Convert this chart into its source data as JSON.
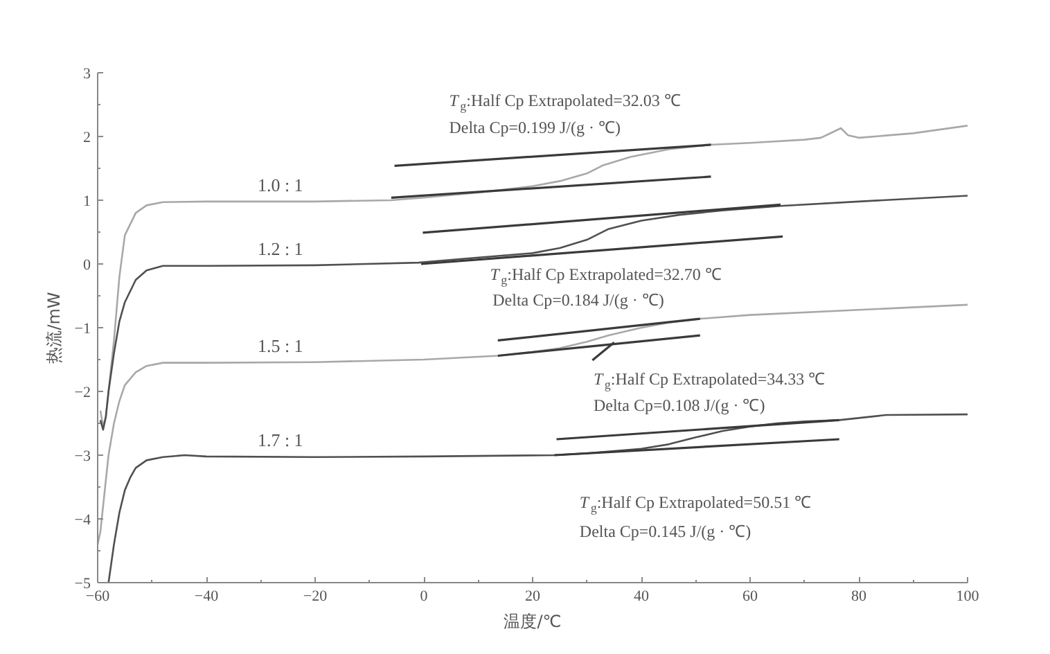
{
  "chart_data": {
    "type": "line",
    "xlabel": "温度/℃",
    "ylabel": "热流/mW",
    "xlim": [
      -60,
      100
    ],
    "ylim": [
      -5,
      3
    ],
    "xticks": [
      -60,
      -40,
      -20,
      0,
      20,
      40,
      60,
      80,
      100
    ],
    "yticks": [
      -5,
      -4,
      -3,
      -2,
      -1,
      0,
      1,
      2,
      3
    ],
    "grid": false,
    "marker": "none",
    "line_style": "solid",
    "series": [
      {
        "name": "1.0 : 1",
        "color": "#a8a8a8",
        "x": [
          -59.5,
          -59,
          -58.5,
          -58,
          -57,
          -56,
          -55,
          -53,
          -51,
          -48,
          -40,
          -20,
          -6,
          0,
          10,
          20,
          25,
          30,
          33,
          38,
          45,
          52.6,
          60,
          70,
          73,
          75,
          76.7,
          78,
          80,
          90,
          100
        ],
        "values": [
          -2.3,
          -2.55,
          -2.4,
          -2.0,
          -1.2,
          -0.2,
          0.45,
          0.8,
          0.92,
          0.97,
          0.98,
          0.98,
          1.0,
          1.04,
          1.12,
          1.22,
          1.3,
          1.42,
          1.55,
          1.68,
          1.8,
          1.87,
          1.9,
          1.95,
          1.98,
          2.06,
          2.13,
          2.02,
          1.98,
          2.05,
          2.17
        ]
      },
      {
        "name": "1.2 : 1",
        "color": "#505050",
        "x": [
          -59.5,
          -59,
          -58.5,
          -58,
          -57,
          -56,
          -55,
          -53,
          -51,
          -48,
          -40,
          -20,
          -1,
          10,
          20,
          25,
          30,
          34,
          40,
          47,
          55,
          65.6,
          80,
          100
        ],
        "values": [
          -2.45,
          -2.6,
          -2.4,
          -2.0,
          -1.4,
          -0.9,
          -0.6,
          -0.25,
          -0.1,
          -0.03,
          -0.03,
          -0.02,
          0.02,
          0.1,
          0.17,
          0.25,
          0.38,
          0.55,
          0.68,
          0.77,
          0.84,
          0.91,
          0.98,
          1.07
        ]
      },
      {
        "name": "1.5 : 1",
        "color": "#a8a8a8",
        "x": [
          -60,
          -59.5,
          -59,
          -58,
          -57,
          -56,
          -55,
          -53,
          -51,
          -48,
          -40,
          -20,
          0,
          13.6,
          20,
          25,
          30,
          34,
          40,
          45,
          50.8,
          60,
          80,
          100
        ],
        "values": [
          -4.4,
          -4.2,
          -3.8,
          -3.0,
          -2.5,
          -2.15,
          -1.9,
          -1.7,
          -1.6,
          -1.55,
          -1.55,
          -1.54,
          -1.5,
          -1.44,
          -1.38,
          -1.32,
          -1.22,
          -1.12,
          -1.0,
          -0.92,
          -0.86,
          -0.8,
          -0.72,
          -0.64
        ]
      },
      {
        "name": "1.7 : 1",
        "color": "#505050",
        "x": [
          -58,
          -57,
          -56,
          -55,
          -54,
          -53,
          -51,
          -48,
          -44,
          -40,
          -20,
          0,
          24,
          30,
          40,
          45,
          50,
          55,
          60,
          65,
          70,
          76.4,
          85,
          100
        ],
        "values": [
          -5.0,
          -4.4,
          -3.9,
          -3.55,
          -3.35,
          -3.2,
          -3.08,
          -3.03,
          -3.0,
          -3.02,
          -3.03,
          -3.02,
          -3.0,
          -2.97,
          -2.9,
          -2.83,
          -2.72,
          -2.62,
          -2.55,
          -2.5,
          -2.47,
          -2.45,
          -2.37,
          -2.36
        ]
      },
      {
        "color": "#3a3a3a",
        "x": [
          -5.4,
          52.8
        ],
        "values": [
          1.54,
          1.87
        ]
      },
      {
        "color": "#3a3a3a",
        "x": [
          -6,
          52.8
        ],
        "values": [
          1.04,
          1.37
        ]
      },
      {
        "color": "#3a3a3a",
        "x": [
          -0.2,
          65.6
        ],
        "values": [
          0.49,
          0.93
        ]
      },
      {
        "color": "#3a3a3a",
        "x": [
          -0.5,
          66
        ],
        "values": [
          0.0,
          0.43
        ]
      },
      {
        "color": "#3a3a3a",
        "x": [
          13.6,
          50.8
        ],
        "values": [
          -1.2,
          -0.86
        ]
      },
      {
        "color": "#3a3a3a",
        "x": [
          13.6,
          50.8
        ],
        "values": [
          -1.44,
          -1.12
        ]
      },
      {
        "color": "#3a3a3a",
        "x": [
          31,
          35
        ],
        "values": [
          -1.51,
          -1.23
        ]
      },
      {
        "color": "#3a3a3a",
        "x": [
          24.4,
          76.4
        ],
        "values": [
          -2.75,
          -2.45
        ]
      },
      {
        "color": "#3a3a3a",
        "x": [
          24,
          76.4
        ],
        "values": [
          -3.0,
          -2.75
        ]
      }
    ],
    "annotations": [
      "T$_{g}$:Half Cp Extrapolated=32.03 ℃",
      "Delta Cp=0.199 J/(g · ℃)",
      "T$_{g}$:Half Cp Extrapolated=32.70 ℃",
      "Delta Cp=0.184 J/(g · ℃)",
      "T$_{g}$:Half Cp Extrapolated=34.33 ℃",
      "Delta Cp=0.108 J/(g · ℃)",
      "T$_{g}$:Half Cp Extrapolated=50.51 ℃",
      "Delta Cp=0.145 J/(g · ℃)"
    ]
  }
}
